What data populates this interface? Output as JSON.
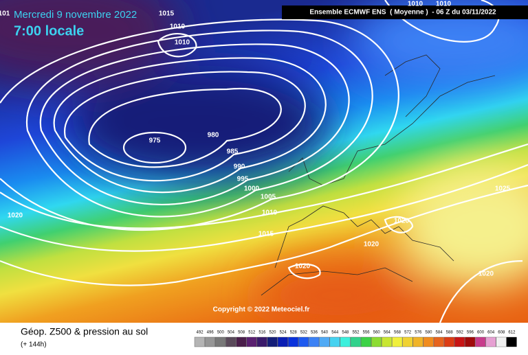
{
  "header": {
    "date": "Mercredi 9 novembre 2022",
    "time": "7:00 locale",
    "model": "Ensemble ECMWF ENS  ( Moyenne )  - 06 Z du 03/11/2022"
  },
  "isobar_labels": [
    "101",
    1015,
    1010,
    1010,
    975,
    980,
    985,
    990,
    995,
    1000,
    1005,
    1010,
    1015,
    1020,
    1020,
    1020,
    1020,
    1020,
    1025,
    1010,
    1010
  ],
  "copyright": "Copyright © 2022 Meteociel.fr",
  "footer": {
    "title": "Géop. Z500 & pression au sol",
    "lead": "(+ 144h)"
  },
  "scale": {
    "values": [
      492,
      496,
      500,
      504,
      508,
      512,
      516,
      520,
      524,
      528,
      532,
      536,
      540,
      544,
      548,
      552,
      556,
      560,
      564,
      568,
      572,
      576,
      580,
      584,
      588,
      592,
      596,
      600,
      604,
      608,
      612
    ],
    "colors": [
      "#b4b4b4",
      "#969696",
      "#787878",
      "#5a4a5a",
      "#4a1e4a",
      "#5a2070",
      "#3a1a6a",
      "#141e78",
      "#0a1eb4",
      "#0a32dc",
      "#1e5af0",
      "#3c82f5",
      "#50aaf5",
      "#46d2f0",
      "#3cf0dc",
      "#32d28c",
      "#3cd246",
      "#8cdc32",
      "#c8e632",
      "#f0f03c",
      "#f0d232",
      "#f0b428",
      "#f08c1e",
      "#e6641e",
      "#dc3c14",
      "#c81414",
      "#a00a0a",
      "#c83c8c",
      "#e6a0d2",
      "#f0f0f0",
      "#000000"
    ]
  }
}
